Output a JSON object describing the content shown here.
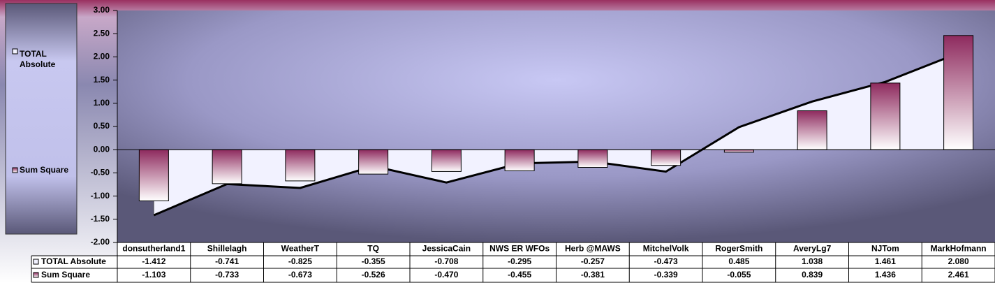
{
  "chart_data": {
    "type": "bar-area",
    "categories": [
      "donsutherland1",
      "Shillelagh",
      "WeatherT",
      "TQ",
      "JessicaCain",
      "NWS ER WFOs",
      "Herb @MAWS",
      "MitchelVolk",
      "RogerSmith",
      "AveryLg7",
      "NJTom",
      "MarkHofmann"
    ],
    "series": [
      {
        "name": "TOTAL Absolute",
        "kind": "area",
        "color": "#f2f2ff",
        "values": [
          -1.412,
          -0.741,
          -0.825,
          -0.355,
          -0.708,
          -0.295,
          -0.257,
          -0.473,
          0.485,
          1.038,
          1.461,
          2.08
        ],
        "value_labels": [
          "-1.412",
          "-0.741",
          "-0.825",
          "-0.355",
          "-0.708",
          "-0.295",
          "-0.257",
          "-0.473",
          "0.485",
          "1.038",
          "1.461",
          "2.080"
        ]
      },
      {
        "name": "Sum Square",
        "kind": "bar",
        "color": "#8e2a5e",
        "values": [
          -1.103,
          -0.733,
          -0.673,
          -0.526,
          -0.47,
          -0.455,
          -0.381,
          -0.339,
          -0.055,
          0.839,
          1.436,
          2.461
        ],
        "value_labels": [
          "-1.103",
          "-0.733",
          "-0.673",
          "-0.526",
          "-0.470",
          "-0.455",
          "-0.381",
          "-0.339",
          "-0.055",
          "0.839",
          "1.436",
          "2.461"
        ]
      }
    ],
    "ylim": [
      -2,
      3
    ],
    "yticks": [
      {
        "value": -2,
        "label": "-2.00"
      },
      {
        "value": -1.5,
        "label": "-1.50"
      },
      {
        "value": -1,
        "label": "-1.00"
      },
      {
        "value": -0.5,
        "label": "-0.50"
      },
      {
        "value": 0,
        "label": "0.00"
      },
      {
        "value": 0.5,
        "label": "0.50"
      },
      {
        "value": 1,
        "label": "1.00"
      },
      {
        "value": 1.5,
        "label": "1.50"
      },
      {
        "value": 2,
        "label": "2.00"
      },
      {
        "value": 2.5,
        "label": "2.50"
      },
      {
        "value": 3,
        "label": "3.00"
      }
    ],
    "legend": "left",
    "data_table": true
  }
}
